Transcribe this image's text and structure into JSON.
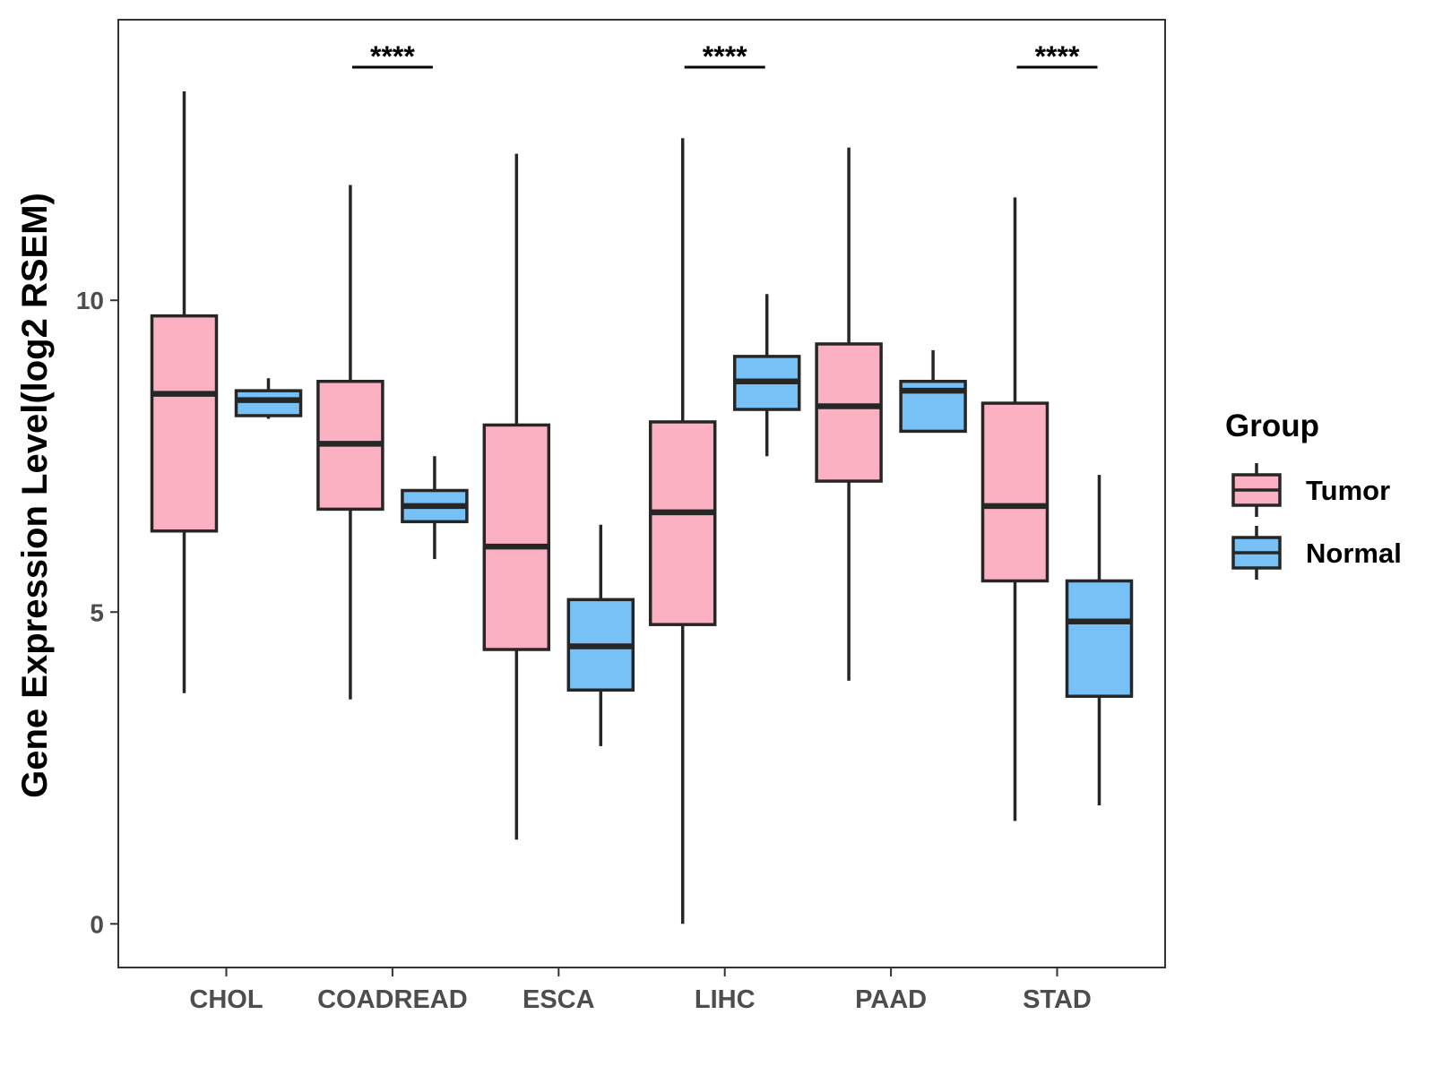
{
  "chart_data": {
    "type": "boxplot",
    "title": "",
    "xlabel": "",
    "ylabel": "Gene Expression Level(log2 RSEM)",
    "ylim": [
      -0.7,
      14.5
    ],
    "yticks": [
      0,
      5,
      10
    ],
    "grid": false,
    "categories": [
      "CHOL",
      "COADREAD",
      "ESCA",
      "LIHC",
      "PAAD",
      "STAD"
    ],
    "series": [
      {
        "name": "Tumor",
        "color": "#fbb1c2",
        "boxes": [
          {
            "min": 3.7,
            "q1": 6.3,
            "median": 8.5,
            "q3": 9.75,
            "max": 13.35
          },
          {
            "min": 3.6,
            "q1": 6.65,
            "median": 7.7,
            "q3": 8.7,
            "max": 11.85
          },
          {
            "min": 1.35,
            "q1": 4.4,
            "median": 6.05,
            "q3": 8.0,
            "max": 12.35
          },
          {
            "min": 0.0,
            "q1": 4.8,
            "median": 6.6,
            "q3": 8.05,
            "max": 12.6
          },
          {
            "min": 3.9,
            "q1": 7.1,
            "median": 8.3,
            "q3": 9.3,
            "max": 12.45
          },
          {
            "min": 1.65,
            "q1": 5.5,
            "median": 6.7,
            "q3": 8.35,
            "max": 11.65
          }
        ]
      },
      {
        "name": "Normal",
        "color": "#77c1f7",
        "boxes": [
          {
            "min": 8.1,
            "q1": 8.15,
            "median": 8.4,
            "q3": 8.55,
            "max": 8.75
          },
          {
            "min": 5.85,
            "q1": 6.45,
            "median": 6.7,
            "q3": 6.95,
            "max": 7.5
          },
          {
            "min": 2.85,
            "q1": 3.75,
            "median": 4.45,
            "q3": 5.2,
            "max": 6.4
          },
          {
            "min": 7.5,
            "q1": 8.25,
            "median": 8.7,
            "q3": 9.1,
            "max": 10.1
          },
          {
            "min": 7.9,
            "q1": 7.9,
            "median": 8.55,
            "q3": 8.7,
            "max": 9.2
          },
          {
            "min": 1.9,
            "q1": 3.65,
            "median": 4.85,
            "q3": 5.5,
            "max": 7.2
          }
        ]
      }
    ],
    "significance": [
      {
        "category": "CHOL",
        "label": ""
      },
      {
        "category": "COADREAD",
        "label": "****"
      },
      {
        "category": "ESCA",
        "label": ""
      },
      {
        "category": "LIHC",
        "label": "****"
      },
      {
        "category": "PAAD",
        "label": ""
      },
      {
        "category": "STAD",
        "label": "****"
      }
    ],
    "legend": {
      "title": "Group",
      "position": "right",
      "entries": [
        "Tumor",
        "Normal"
      ]
    }
  }
}
